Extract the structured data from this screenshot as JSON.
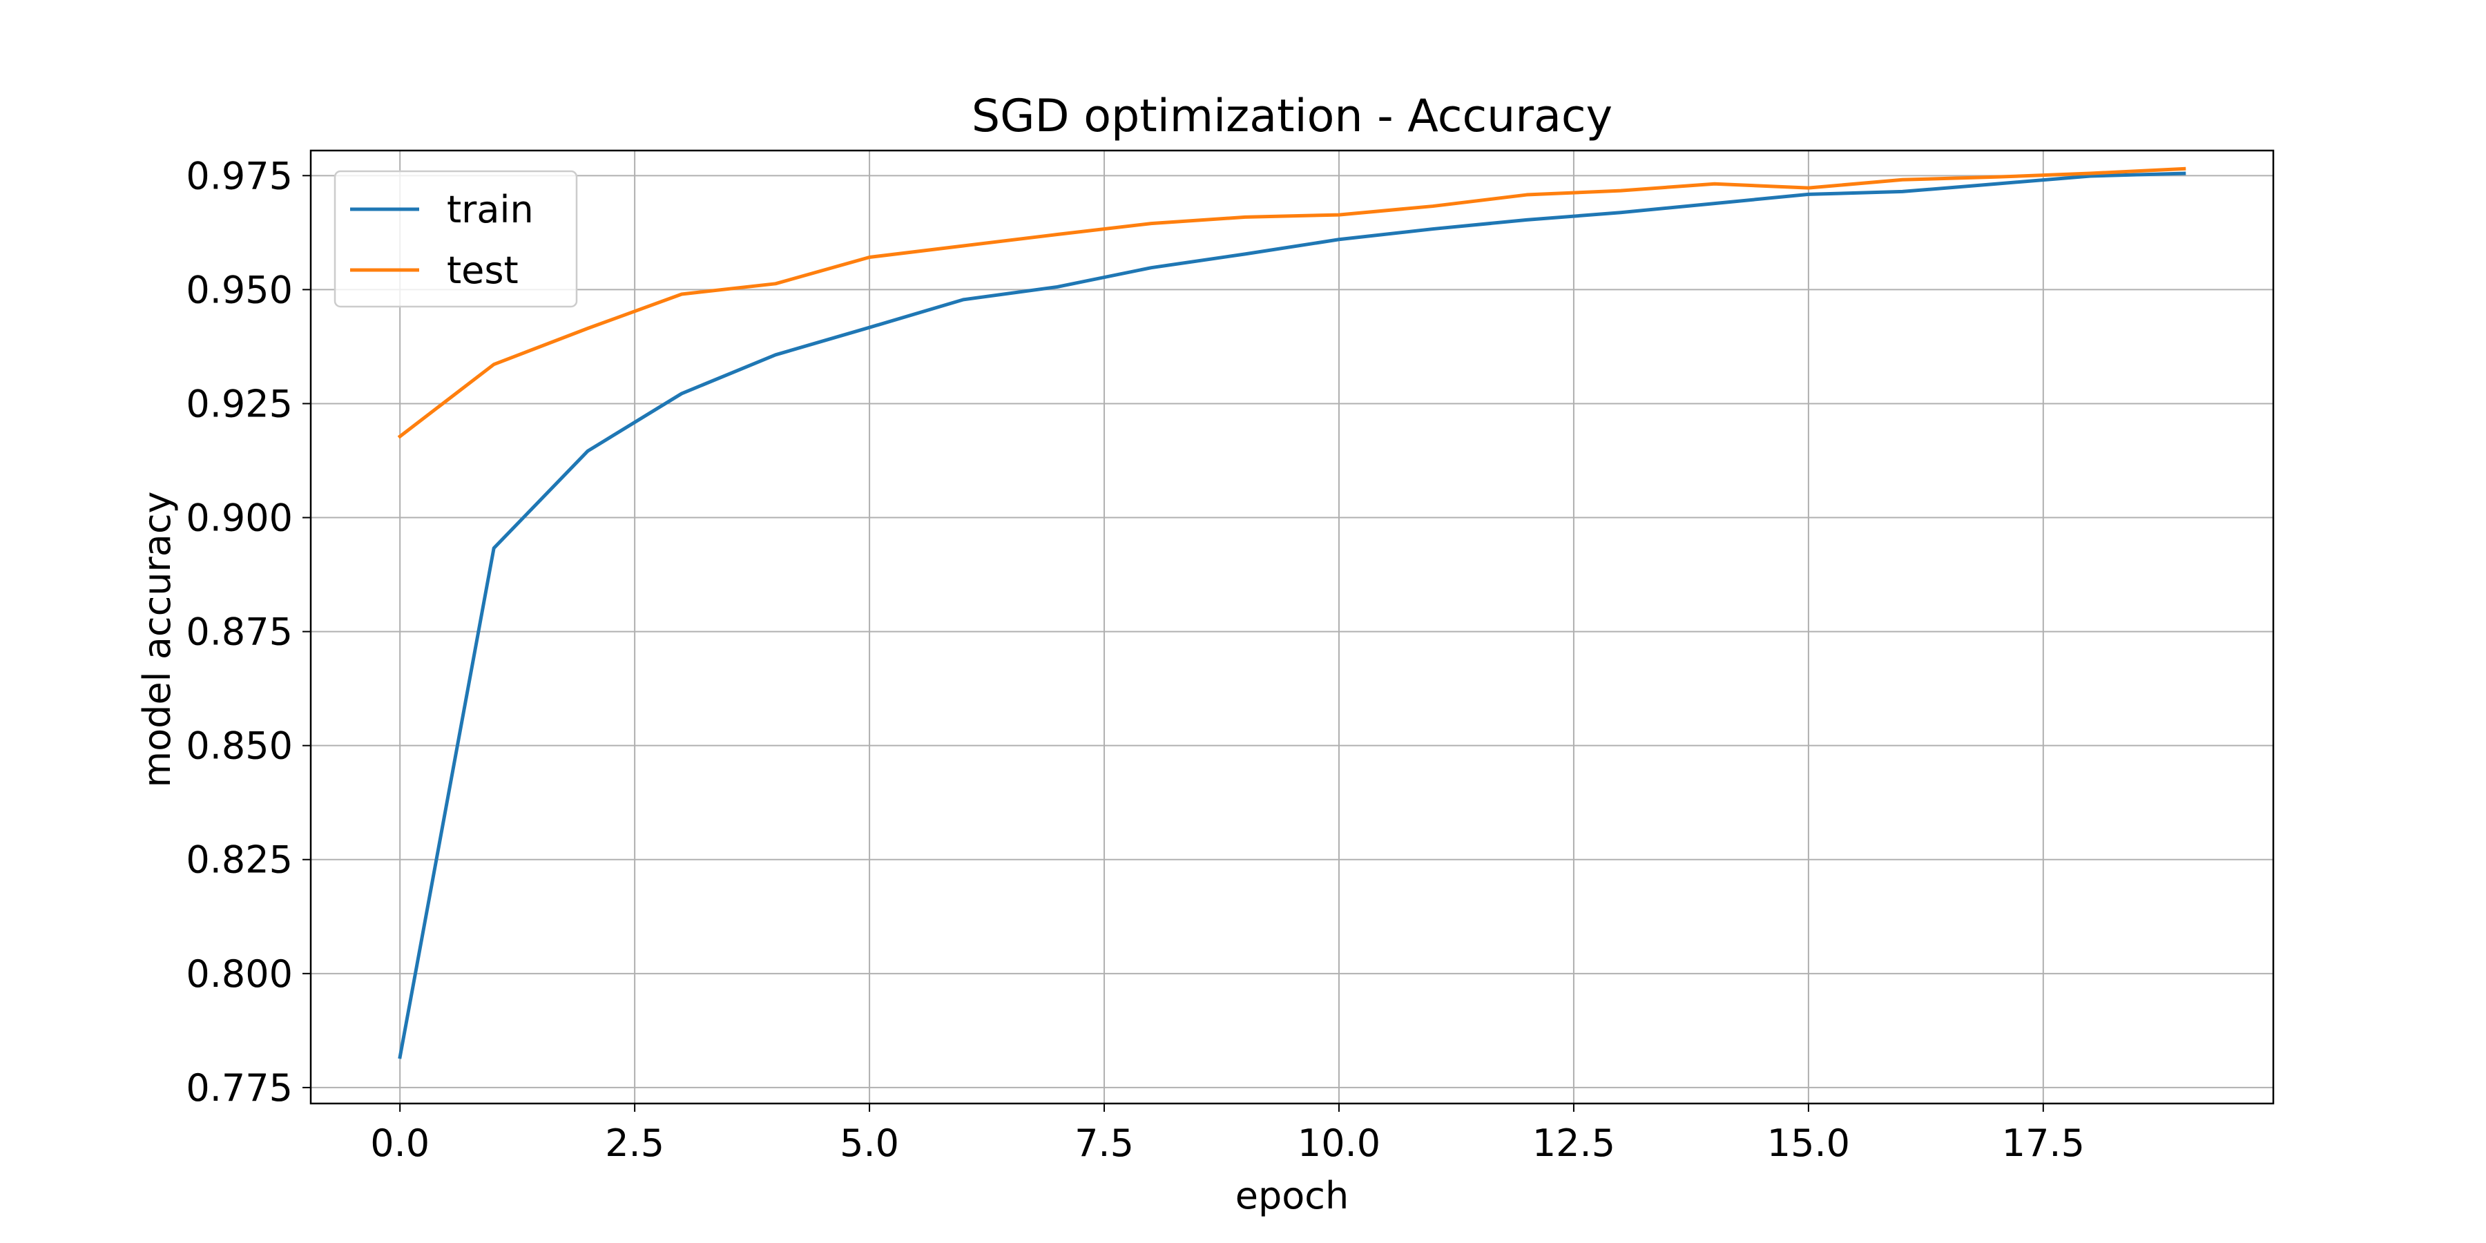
{
  "chart_data": {
    "type": "line",
    "title": "SGD optimization - Accuracy",
    "xlabel": "epoch",
    "ylabel": "model accuracy",
    "xlim": [
      -0.95,
      19.95
    ],
    "ylim": [
      0.7715,
      0.9805
    ],
    "xticks": [
      "0.0",
      "2.5",
      "5.0",
      "7.5",
      "10.0",
      "12.5",
      "15.0",
      "17.5"
    ],
    "yticks": [
      "0.775",
      "0.800",
      "0.825",
      "0.850",
      "0.875",
      "0.900",
      "0.925",
      "0.950",
      "0.975"
    ],
    "grid": true,
    "legend_position": "top-left",
    "x": [
      0,
      1,
      2,
      3,
      4,
      5,
      6,
      7,
      8,
      9,
      10,
      11,
      12,
      13,
      14,
      15,
      16,
      17,
      18,
      19
    ],
    "series": [
      {
        "name": "train",
        "color": "#1f77b4",
        "values": [
          0.7817,
          0.8933,
          0.9146,
          0.9272,
          0.9357,
          0.9417,
          0.9478,
          0.9506,
          0.9548,
          0.9578,
          0.961,
          0.9633,
          0.9653,
          0.9669,
          0.9689,
          0.9709,
          0.9715,
          0.9732,
          0.9749,
          0.9755
        ]
      },
      {
        "name": "test",
        "color": "#ff7f0e",
        "values": [
          0.9178,
          0.9336,
          0.9415,
          0.949,
          0.9513,
          0.9571,
          0.9596,
          0.9621,
          0.9645,
          0.9659,
          0.9664,
          0.9683,
          0.9708,
          0.9717,
          0.9732,
          0.9723,
          0.9741,
          0.9747,
          0.9755,
          0.9765
        ]
      }
    ]
  }
}
